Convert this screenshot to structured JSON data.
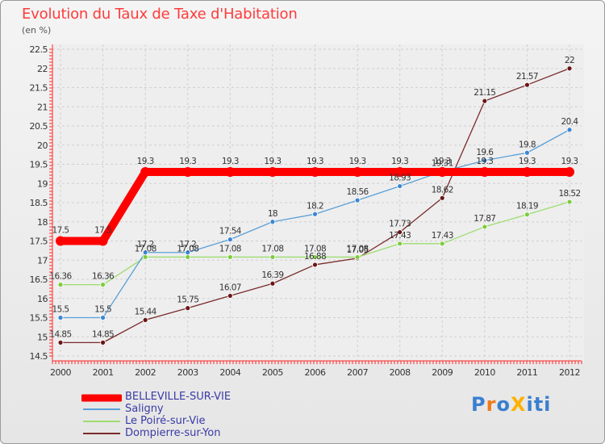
{
  "title": "Evolution du Taux de Taxe d'Habitation",
  "subtitle": "(en %)",
  "logo": {
    "text": "ProXiti",
    "letters": [
      "P",
      "r",
      "o",
      "X",
      "i",
      "t",
      "i"
    ],
    "colors": [
      "#3a7fd0",
      "#f07a1a",
      "#3a7fd0",
      "#ffb000",
      "#3a7fd0",
      "#3a7fd0",
      "#3a7fd0"
    ]
  },
  "chart_data": {
    "type": "line",
    "title": "Evolution du Taux de Taxe d'Habitation",
    "ylabel": "(en %)",
    "xlabel": "",
    "ylim": [
      14.5,
      22.5
    ],
    "yticks": [
      "14.5",
      "15",
      "15.5",
      "16",
      "16.5",
      "17",
      "17.5",
      "18",
      "18.5",
      "19",
      "19.5",
      "20",
      "20.5",
      "21",
      "21.5",
      "22",
      "22.5"
    ],
    "categories": [
      "2000",
      "2001",
      "2002",
      "2003",
      "2004",
      "2005",
      "2006",
      "2007",
      "2008",
      "2009",
      "2010",
      "2011",
      "2012"
    ],
    "grid": true,
    "legend_position": "bottom-left",
    "series": [
      {
        "name": "BELLEVILLE-SUR-VIE",
        "color": "#ff0000",
        "width": 10,
        "values": [
          17.5,
          17.5,
          19.3,
          19.3,
          19.3,
          19.3,
          19.3,
          19.3,
          19.3,
          19.3,
          19.3,
          19.3,
          19.3
        ],
        "labels": [
          "17.5",
          "17.5",
          "19.3",
          "19.3",
          "19.3",
          "19.3",
          "19.3",
          "19.3",
          "19.3",
          "19.3",
          "19.3",
          "19.3",
          "19.3"
        ]
      },
      {
        "name": "Saligny",
        "color": "#5aa0d8",
        "marker": "#3a86d4",
        "width": 1.3,
        "values": [
          15.5,
          15.5,
          17.2,
          17.2,
          17.54,
          18,
          18.2,
          18.56,
          18.93,
          19.31,
          19.6,
          19.8,
          20.4
        ],
        "labels": [
          "15.5",
          "15.5",
          "17.2",
          "17.2",
          "17.54",
          "18",
          "18.2",
          "18.56",
          "18.93",
          "19.31",
          "19.6",
          "19.8",
          "20.4"
        ]
      },
      {
        "name": "Le Poiré-sur-Vie",
        "color": "#9ddc70",
        "marker": "#7dcc3c",
        "width": 1.3,
        "values": [
          16.36,
          16.36,
          17.08,
          17.08,
          17.08,
          17.08,
          17.08,
          17.08,
          17.43,
          17.43,
          17.87,
          18.19,
          18.52
        ],
        "labels": [
          "16.36",
          "16.36",
          "17.08",
          "17.08",
          "17.08",
          "17.08",
          "17.08",
          "17.08",
          "17.43",
          "17.43",
          "17.87",
          "18.19",
          "18.52"
        ]
      },
      {
        "name": "Dompierre-sur-Yon",
        "color": "#7a2a2a",
        "marker": "#6a1515",
        "width": 1.3,
        "values": [
          14.85,
          14.85,
          15.44,
          15.75,
          16.07,
          16.39,
          16.88,
          17.05,
          17.73,
          18.62,
          21.15,
          21.57,
          22
        ],
        "labels": [
          "14.85",
          "14.85",
          "15.44",
          "15.75",
          "16.07",
          "16.39",
          "16.88",
          "17.05",
          "17.73",
          "18.62",
          "21.15",
          "21.57",
          "22"
        ]
      }
    ]
  }
}
